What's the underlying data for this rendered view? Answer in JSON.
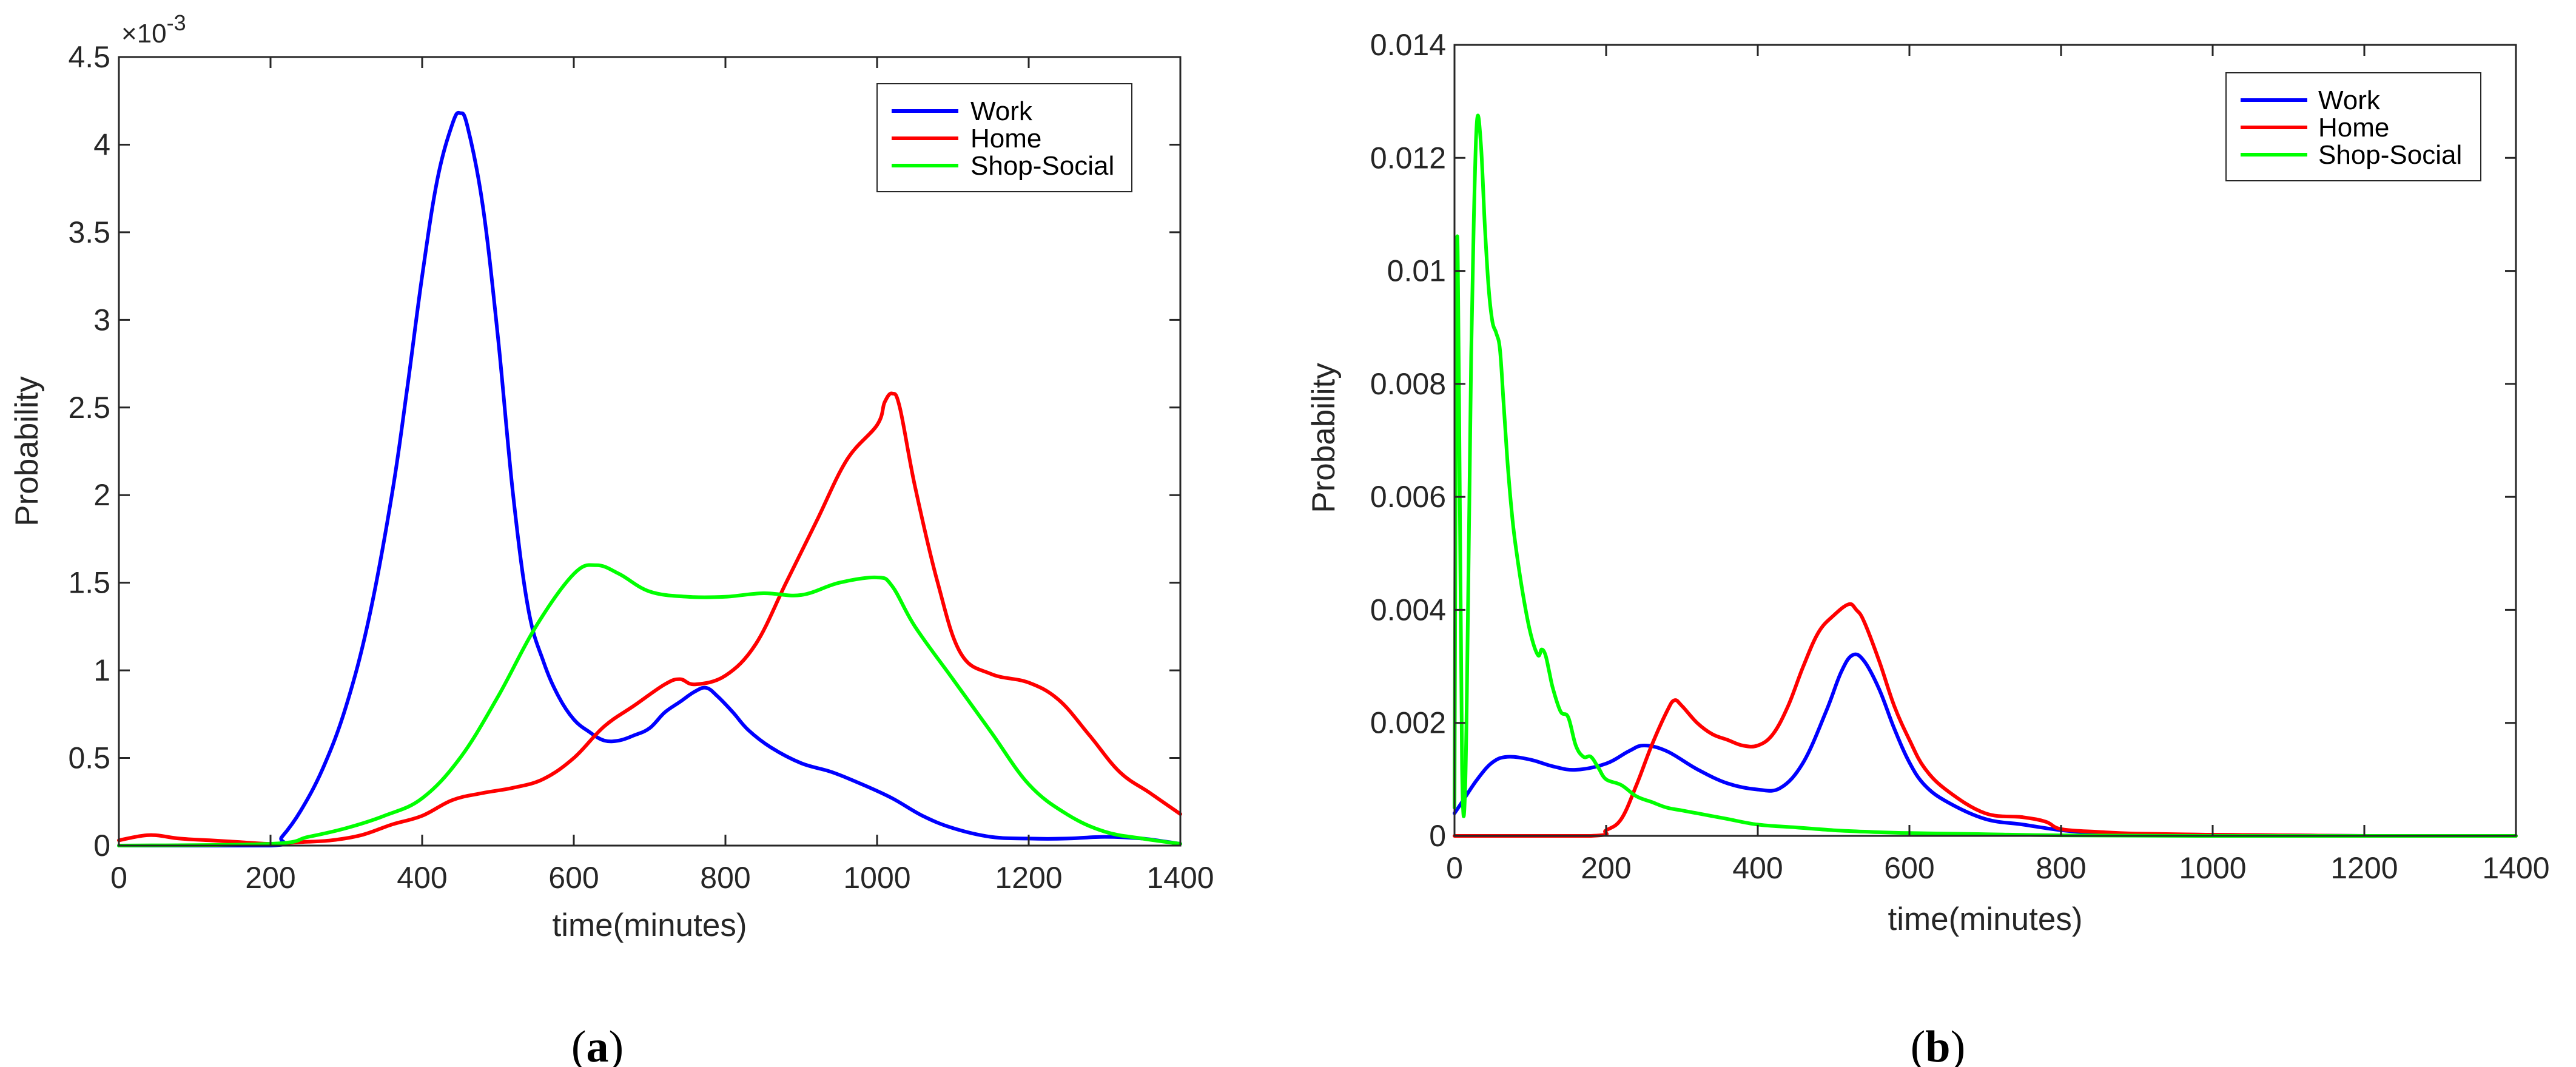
{
  "chart_data": [
    {
      "type": "line",
      "panel": "a",
      "caption": "(a)",
      "xlabel": "time(minutes)",
      "ylabel": "Probability",
      "xlim": [
        0,
        1400
      ],
      "ylim": [
        0,
        4.5
      ],
      "y_scale_exponent": "×10",
      "y_scale_power": "-3",
      "xticks": [
        "0",
        "200",
        "400",
        "600",
        "800",
        "1000",
        "1200",
        "1400"
      ],
      "yticks": [
        "0",
        "0.5",
        "1",
        "1.5",
        "2",
        "2.5",
        "3",
        "3.5",
        "4",
        "4.5"
      ],
      "legend": "top-right",
      "series": [
        {
          "name": "Work",
          "color": "#0000ff",
          "x": [
            0,
            200,
            215,
            240,
            270,
            300,
            330,
            360,
            380,
            400,
            420,
            440,
            450,
            460,
            480,
            500,
            520,
            540,
            560,
            580,
            600,
            620,
            640,
            660,
            680,
            700,
            720,
            740,
            760,
            775,
            790,
            810,
            830,
            860,
            900,
            940,
            980,
            1020,
            1060,
            1100,
            1150,
            1200,
            1250,
            1300,
            1350,
            1400
          ],
          "y": [
            0,
            0,
            0.05,
            0.2,
            0.45,
            0.8,
            1.3,
            2.0,
            2.6,
            3.25,
            3.8,
            4.12,
            4.18,
            4.1,
            3.65,
            2.9,
            2.0,
            1.35,
            1.05,
            0.85,
            0.72,
            0.65,
            0.6,
            0.6,
            0.63,
            0.67,
            0.76,
            0.82,
            0.88,
            0.9,
            0.85,
            0.76,
            0.66,
            0.56,
            0.47,
            0.42,
            0.35,
            0.27,
            0.17,
            0.1,
            0.05,
            0.04,
            0.04,
            0.05,
            0.04,
            0.01
          ]
        },
        {
          "name": "Home",
          "color": "#ff0000",
          "x": [
            0,
            40,
            80,
            120,
            160,
            200,
            240,
            280,
            320,
            360,
            400,
            440,
            480,
            520,
            560,
            600,
            640,
            680,
            720,
            740,
            760,
            800,
            840,
            880,
            920,
            960,
            1000,
            1010,
            1020,
            1030,
            1050,
            1080,
            1110,
            1150,
            1200,
            1240,
            1280,
            1320,
            1360,
            1400
          ],
          "y": [
            0.03,
            0.06,
            0.04,
            0.03,
            0.02,
            0.01,
            0.02,
            0.03,
            0.06,
            0.12,
            0.17,
            0.26,
            0.3,
            0.33,
            0.38,
            0.5,
            0.68,
            0.8,
            0.92,
            0.95,
            0.92,
            0.97,
            1.15,
            1.5,
            1.85,
            2.2,
            2.4,
            2.53,
            2.58,
            2.5,
            2.05,
            1.5,
            1.1,
            0.98,
            0.93,
            0.83,
            0.63,
            0.42,
            0.3,
            0.18
          ]
        },
        {
          "name": "Shop-Social",
          "color": "#00ff00",
          "x": [
            0,
            200,
            250,
            300,
            350,
            400,
            450,
            500,
            550,
            600,
            630,
            660,
            700,
            750,
            800,
            850,
            900,
            950,
            1000,
            1020,
            1050,
            1100,
            1150,
            1200,
            1250,
            1300,
            1350,
            1400
          ],
          "y": [
            0,
            0.01,
            0.05,
            0.1,
            0.17,
            0.27,
            0.5,
            0.85,
            1.25,
            1.55,
            1.6,
            1.55,
            1.45,
            1.42,
            1.42,
            1.44,
            1.43,
            1.5,
            1.53,
            1.48,
            1.25,
            0.95,
            0.65,
            0.35,
            0.18,
            0.08,
            0.04,
            0.01
          ]
        }
      ]
    },
    {
      "type": "line",
      "panel": "b",
      "caption": "(b)",
      "xlabel": "time(minutes)",
      "ylabel": "Probability",
      "xlim": [
        0,
        1400
      ],
      "ylim": [
        0,
        0.014
      ],
      "xticks": [
        "0",
        "200",
        "400",
        "600",
        "800",
        "1000",
        "1200",
        "1400"
      ],
      "yticks": [
        "0",
        "0.002",
        "0.004",
        "0.006",
        "0.008",
        "0.01",
        "0.012",
        "0.014"
      ],
      "legend": "top-right",
      "series": [
        {
          "name": "Work",
          "color": "#0000ff",
          "x": [
            0,
            10,
            30,
            50,
            70,
            100,
            130,
            160,
            200,
            230,
            250,
            280,
            320,
            360,
            400,
            430,
            460,
            490,
            510,
            525,
            540,
            560,
            580,
            600,
            620,
            650,
            700,
            750,
            800,
            850,
            900,
            1000,
            1100,
            1200,
            1300,
            1400
          ],
          "y": [
            0.0004,
            0.0006,
            0.001,
            0.0013,
            0.0014,
            0.00135,
            0.00123,
            0.00117,
            0.00128,
            0.0015,
            0.0016,
            0.0015,
            0.00118,
            0.00093,
            0.00082,
            0.00085,
            0.0013,
            0.0022,
            0.0029,
            0.0032,
            0.0031,
            0.0026,
            0.0019,
            0.0013,
            0.0009,
            0.0006,
            0.0003,
            0.0002,
            0.0001,
            5e-05,
            3e-05,
            2e-05,
            1e-05,
            0.0,
            0.0,
            0.0
          ]
        },
        {
          "name": "Home",
          "color": "#ff0000",
          "x": [
            0,
            180,
            200,
            220,
            240,
            260,
            280,
            290,
            300,
            320,
            340,
            360,
            380,
            400,
            420,
            440,
            460,
            480,
            500,
            520,
            530,
            540,
            560,
            580,
            600,
            620,
            650,
            700,
            750,
            780,
            800,
            850,
            900,
            1000,
            1100,
            1200,
            1300,
            1400
          ],
          "y": [
            0,
            0,
            0.0001,
            0.0003,
            0.0009,
            0.0016,
            0.0022,
            0.0024,
            0.0023,
            0.002,
            0.0018,
            0.0017,
            0.0016,
            0.0016,
            0.0018,
            0.0023,
            0.003,
            0.0036,
            0.0039,
            0.0041,
            0.004,
            0.0038,
            0.0031,
            0.0023,
            0.0017,
            0.0012,
            0.0008,
            0.0004,
            0.00033,
            0.00025,
            0.00012,
            7e-05,
            4e-05,
            2e-05,
            1e-05,
            0.0,
            0.0,
            0.0
          ]
        },
        {
          "name": "Shop-Social",
          "color": "#00ff00",
          "x": [
            0,
            3,
            6,
            10,
            14,
            18,
            22,
            26,
            30,
            35,
            40,
            45,
            50,
            55,
            60,
            65,
            70,
            75,
            80,
            90,
            100,
            110,
            115,
            120,
            125,
            130,
            140,
            150,
            160,
            170,
            180,
            190,
            200,
            220,
            240,
            260,
            280,
            300,
            320,
            340,
            360,
            400,
            450,
            500,
            550,
            600,
            700,
            800,
            1000,
            1200,
            1400
          ],
          "y": [
            0.0005,
            0.0102,
            0.0078,
            0.0012,
            0.0008,
            0.0042,
            0.0085,
            0.0112,
            0.0127,
            0.0122,
            0.0108,
            0.0097,
            0.0091,
            0.0089,
            0.0086,
            0.0076,
            0.0066,
            0.0058,
            0.0052,
            0.0043,
            0.0036,
            0.0032,
            0.0033,
            0.0032,
            0.0029,
            0.0026,
            0.0022,
            0.0021,
            0.0016,
            0.0014,
            0.0014,
            0.0012,
            0.001,
            0.0009,
            0.0007,
            0.0006,
            0.0005,
            0.00045,
            0.0004,
            0.00035,
            0.0003,
            0.0002,
            0.00015,
            0.0001,
            7e-05,
            5e-05,
            3e-05,
            1e-05,
            0.0,
            0.0,
            0.0
          ]
        }
      ]
    }
  ]
}
